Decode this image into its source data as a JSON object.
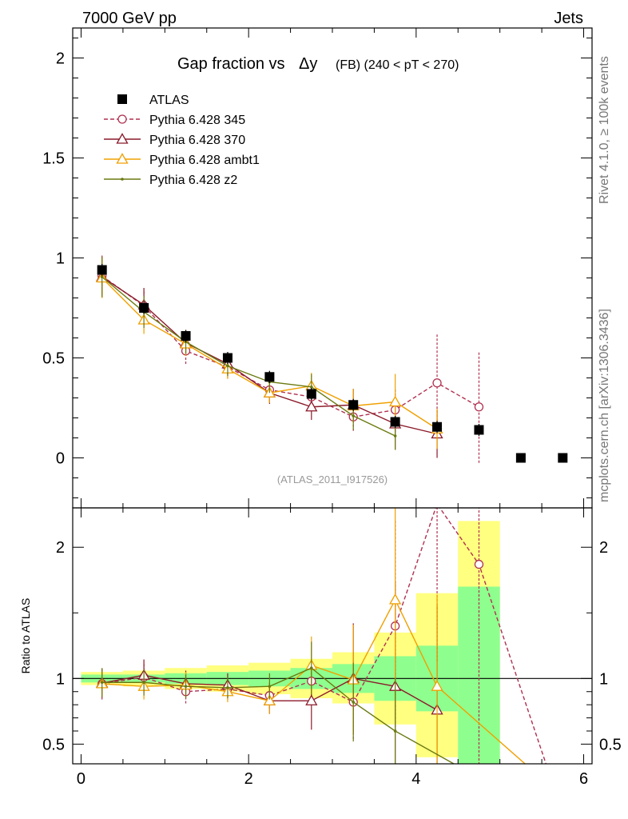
{
  "header": {
    "left": "7000 GeV pp",
    "right": "Jets",
    "side_top": "Rivet 4.1.0, ≥ 100k events",
    "side_bottom": "mcplots.cern.ch [arXiv:1306.3436]"
  },
  "chart_data": [
    {
      "type": "scatter",
      "title_main": "Gap fraction vs",
      "title_delta": "Δy",
      "title_sub": "(FB)  (240 < pT < 270)",
      "watermark": "(ATLAS_2011_I917526)",
      "ylim": [
        -0.25,
        2.15
      ],
      "xlim": [
        -0.1,
        6.1
      ],
      "yticks": [
        0,
        0.5,
        1,
        1.5,
        2
      ],
      "ytick_labels": [
        "0",
        "0.5",
        "1",
        "1.5",
        "2"
      ],
      "x": [
        0.25,
        0.75,
        1.25,
        1.75,
        2.25,
        2.75,
        3.25,
        3.75,
        4.25,
        4.75,
        5.25,
        5.75
      ],
      "series": [
        {
          "name": "ATLAS",
          "color": "#000000",
          "marker": "square",
          "line": "none",
          "values": [
            0.94,
            0.75,
            0.61,
            0.5,
            0.405,
            0.32,
            0.265,
            0.18,
            0.155,
            0.14,
            0.0,
            0.0
          ],
          "errors": [
            0.03,
            0.03,
            0.03,
            0.03,
            0.03,
            0.03,
            0.03,
            0.03,
            0.03,
            0.03,
            0.0,
            0.0
          ]
        },
        {
          "name": "Pythia 6.428 345",
          "color": "#b03050",
          "marker": "circle",
          "line": "dashed",
          "values": [
            0.91,
            0.76,
            0.535,
            0.455,
            0.34,
            0.305,
            0.205,
            0.24,
            0.375,
            0.255
          ],
          "errors": [
            0.11,
            0.08,
            0.065,
            0.055,
            0.06,
            0.06,
            0.07,
            0.11,
            0.25,
            0.28
          ]
        },
        {
          "name": "Pythia 6.428 370",
          "color": "#8b1a2a",
          "marker": "triangle",
          "line": "solid",
          "values": [
            0.905,
            0.765,
            0.575,
            0.47,
            0.325,
            0.255,
            0.265,
            0.17,
            0.12
          ],
          "errors": [
            0.1,
            0.085,
            0.065,
            0.055,
            0.055,
            0.065,
            0.08,
            0.13,
            0.12
          ]
        },
        {
          "name": "Pythia 6.428 ambt1",
          "color": "#f0a000",
          "marker": "triangle",
          "line": "solid",
          "values": [
            0.9,
            0.69,
            0.57,
            0.445,
            0.325,
            0.36,
            0.26,
            0.28,
            0.145
          ],
          "errors": [
            0.1,
            0.07,
            0.06,
            0.05,
            0.05,
            0.065,
            0.085,
            0.14,
            0.1
          ]
        },
        {
          "name": "Pythia 6.428 z2",
          "color": "#6b7a10",
          "marker": "dot",
          "line": "solid",
          "values": [
            0.905,
            0.73,
            0.58,
            0.46,
            0.38,
            0.355,
            0.21,
            0.11
          ],
          "errors": [
            0.1,
            0.08,
            0.06,
            0.05,
            0.055,
            0.065,
            0.07,
            0.07
          ]
        }
      ]
    },
    {
      "type": "scatter",
      "ylabel": "Ratio to ATLAS",
      "ylim": [
        0.35,
        2.3
      ],
      "xlim": [
        -0.1,
        6.1
      ],
      "yticks": [
        0.5,
        1,
        2
      ],
      "ytick_labels": [
        "0.5",
        "1",
        "2"
      ],
      "xticks": [
        0,
        2,
        4,
        6
      ],
      "xtick_labels": [
        "0",
        "2",
        "4",
        "6"
      ],
      "x": [
        0.25,
        0.75,
        1.25,
        1.75,
        2.25,
        2.75,
        3.25,
        3.75,
        4.25,
        4.75
      ],
      "band_edges": [
        0,
        0.5,
        1.0,
        1.5,
        2.0,
        2.5,
        3.0,
        3.5,
        4.0,
        4.5,
        5.0
      ],
      "band_green": [
        [
          0.97,
          1.03
        ],
        [
          0.97,
          1.03
        ],
        [
          0.96,
          1.04
        ],
        [
          0.95,
          1.05
        ],
        [
          0.94,
          1.06
        ],
        [
          0.92,
          1.08
        ],
        [
          0.89,
          1.11
        ],
        [
          0.83,
          1.17
        ],
        [
          0.75,
          1.25
        ],
        [
          0.35,
          1.7
        ]
      ],
      "band_yellow": [
        [
          0.95,
          1.05
        ],
        [
          0.94,
          1.06
        ],
        [
          0.92,
          1.08
        ],
        [
          0.9,
          1.1
        ],
        [
          0.88,
          1.12
        ],
        [
          0.85,
          1.15
        ],
        [
          0.81,
          1.2
        ],
        [
          0.65,
          1.35
        ],
        [
          0.4,
          1.65
        ],
        [
          0.35,
          2.2
        ]
      ],
      "reference": 1,
      "series": [
        {
          "name": "Pythia 6.428 345",
          "color": "#b03050",
          "marker": "circle",
          "line": "dashed",
          "values": [
            0.96,
            1.01,
            0.9,
            0.92,
            0.87,
            0.98,
            0.82,
            1.4,
            2.33,
            1.87
          ],
          "errors": [
            0.12,
            0.1,
            0.09,
            0.08,
            0.1,
            0.15,
            0.28,
            0.8,
            1.2,
            1.8
          ],
          "tail": [
            [
              5.55,
              0.35
            ]
          ]
        },
        {
          "name": "Pythia 6.428 370",
          "color": "#8b1a2a",
          "marker": "triangle",
          "line": "solid",
          "values": [
            0.965,
            1.025,
            0.96,
            0.95,
            0.83,
            0.83,
            1.0,
            0.94,
            0.76
          ],
          "errors": [
            0.11,
            0.12,
            0.1,
            0.09,
            0.1,
            0.22,
            0.42,
            0.8,
            0.8
          ],
          "tail": []
        },
        {
          "name": "Pythia 6.428 ambt1",
          "color": "#f0a000",
          "marker": "triangle",
          "line": "solid",
          "values": [
            0.96,
            0.94,
            0.95,
            0.9,
            0.83,
            1.1,
            0.99,
            1.6,
            0.94
          ],
          "errors": [
            0.1,
            0.1,
            0.1,
            0.08,
            0.1,
            0.22,
            0.42,
            0.8,
            0.7
          ],
          "tail": [
            [
              5.3,
              0.35
            ]
          ]
        },
        {
          "name": "Pythia 6.428 z2",
          "color": "#6b7a10",
          "marker": "dot",
          "line": "solid",
          "values": [
            0.97,
            0.97,
            0.94,
            0.93,
            0.94,
            1.08,
            0.82,
            0.6
          ],
          "errors": [
            0.11,
            0.1,
            0.09,
            0.08,
            0.1,
            0.2,
            0.3,
            0.4
          ],
          "tail": [
            [
              4.45,
              0.35
            ]
          ]
        }
      ]
    }
  ]
}
